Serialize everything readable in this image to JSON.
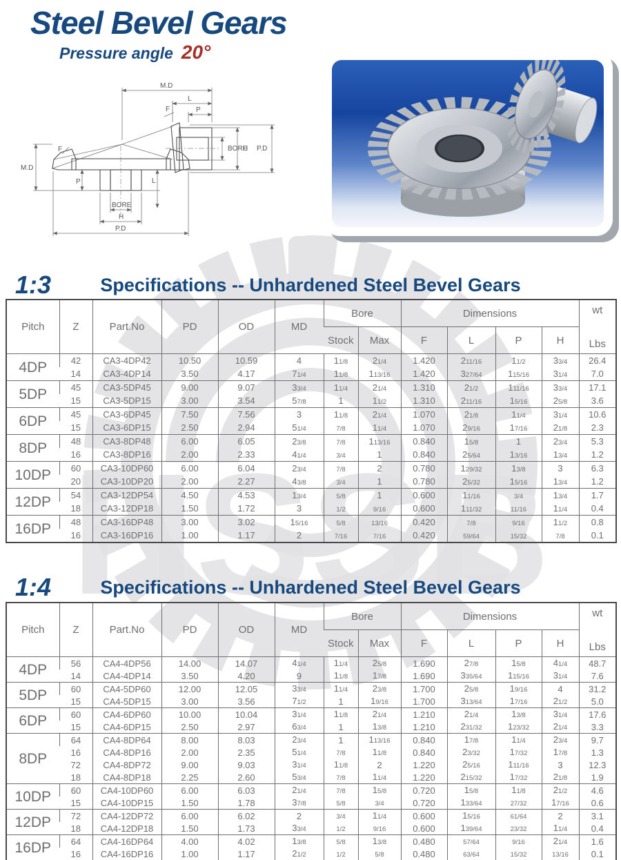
{
  "page": {
    "title": "Steel Bevel Gears",
    "subtitle": "Pressure angle",
    "pressure_angle": "20°"
  },
  "colors": {
    "navy": "#17497f",
    "red": "#a63028",
    "table_text": "#6e6e6e",
    "watermark": "#e4e4e6",
    "photo_blue": "#16459f"
  },
  "watermark_text": "HSSB",
  "drawing": {
    "labels": {
      "md": "M.D",
      "l": "L",
      "f": "F",
      "p": "P",
      "bore": "BORE",
      "h": "H",
      "pd": "P.D"
    }
  },
  "sections": [
    {
      "ratio": "1:3",
      "heading": "Specifications -- Unhardened Steel Bevel Gears",
      "table": {
        "headers": {
          "pitch": "Pitch",
          "z": "Z",
          "part": "Part.No",
          "pd": "PD",
          "od": "OD",
          "md": "MD",
          "bore": "Bore",
          "stock": "Stock",
          "max": "Max",
          "dimensions": "Dimensions",
          "f": "F",
          "l": "L",
          "p": "P",
          "h": "H",
          "wt": "wt",
          "lbs": "Lbs"
        },
        "groups": [
          {
            "pitch": "4DP",
            "rows": [
              [
                "42",
                "CA3-4DP42",
                "10.50",
                "10.59",
                "4",
                "1 1/8",
                "2 1/4",
                "1.420",
                "2 11/16",
                "1 1/2",
                "3 3/4",
                "26.4"
              ],
              [
                "14",
                "CA3-4DP14",
                "3.50",
                "4.17",
                "7 1/4",
                "1 1/8",
                "1 13/16",
                "1.420",
                "3 27/64",
                "1 15/16",
                "3 1/4",
                "7.0"
              ]
            ]
          },
          {
            "pitch": "5DP",
            "rows": [
              [
                "45",
                "CA3-5DP45",
                "9.00",
                "9.07",
                "3 3/4",
                "1 1/4",
                "2 1/4",
                "1.310",
                "2 1/2",
                "1 11/16",
                "3 3/4",
                "17.1"
              ],
              [
                "15",
                "CA3-5DP15",
                "3.00",
                "3.54",
                "5 7/8",
                "1",
                "1 1/2",
                "1.310",
                "2 11/16",
                "1 5/16",
                "2 5/8",
                "3.6"
              ]
            ]
          },
          {
            "pitch": "6DP",
            "rows": [
              [
                "45",
                "CA3-6DP45",
                "7.50",
                "7.56",
                "3",
                "1 1/8",
                "2 1/4",
                "1.070",
                "2 1/8",
                "1 1/4",
                "3 1/4",
                "10.6"
              ],
              [
                "15",
                "CA3-6DP15",
                "2.50",
                "2.94",
                "5 1/4",
                "7/8",
                "1 1/4",
                "1.070",
                "2 9/16",
                "1 7/16",
                "2 1/8",
                "2.3"
              ]
            ]
          },
          {
            "pitch": "8DP",
            "rows": [
              [
                "48",
                "CA3-8DP48",
                "6.00",
                "6.05",
                "2 3/8",
                "7/8",
                "1 13/16",
                "0.840",
                "1 5/8",
                "1",
                "2 3/4",
                "5.3"
              ],
              [
                "16",
                "CA3-8DP16",
                "2.00",
                "2.33",
                "4 1/4",
                "3/4",
                "1",
                "0.840",
                "2 5/64",
                "1 3/16",
                "1 3/4",
                "1.2"
              ]
            ]
          },
          {
            "pitch": "10DP",
            "rows": [
              [
                "60",
                "CA3-10DP60",
                "6.00",
                "6.04",
                "2 3/4",
                "7/8",
                "2",
                "0.780",
                "1 29/32",
                "1 3/8",
                "3",
                "6.3"
              ],
              [
                "20",
                "CA3-10DP20",
                "2.00",
                "2.27",
                "4 3/8",
                "3/4",
                "1",
                "0.780",
                "2 5/32",
                "1 5/16",
                "1 3/4",
                "1.2"
              ]
            ]
          },
          {
            "pitch": "12DP",
            "rows": [
              [
                "54",
                "CA3-12DP54",
                "4.50",
                "4.53",
                "1 3/4",
                "5/8",
                "1",
                "0.600",
                "1 1/16",
                "3/4",
                "1 3/4",
                "1.7"
              ],
              [
                "18",
                "CA3-12DP18",
                "1.50",
                "1.72",
                "3",
                "1/2",
                "9/16",
                "0.600",
                "1 11/32",
                "11/16",
                "1 1/4",
                "0.4"
              ]
            ]
          },
          {
            "pitch": "16DP",
            "rows": [
              [
                "48",
                "CA3-16DP48",
                "3.00",
                "3.02",
                "1 5/16",
                "5/8",
                "13/16",
                "0.420",
                "7/8",
                "9/16",
                "1 1/2",
                "0.8"
              ],
              [
                "16",
                "CA3-16DP16",
                "1.00",
                "1.17",
                "2",
                "7/16",
                "7/16",
                "0.420",
                "59/64",
                "15/32",
                "7/8",
                "0.1"
              ]
            ]
          }
        ]
      }
    },
    {
      "ratio": "1:4",
      "heading": "Specifications -- Unhardened Steel Bevel Gears",
      "table": {
        "headers": {
          "pitch": "Pitch",
          "z": "Z",
          "part": "Part.No",
          "pd": "PD",
          "od": "OD",
          "md": "MD",
          "bore": "Bore",
          "stock": "Stock",
          "max": "Max",
          "dimensions": "Dimensions",
          "f": "F",
          "l": "L",
          "p": "P",
          "h": "H",
          "wt": "wt",
          "lbs": "Lbs"
        },
        "groups": [
          {
            "pitch": "4DP",
            "rows": [
              [
                "56",
                "CA4-4DP56",
                "14.00",
                "14.07",
                "4 1/4",
                "1 1/4",
                "2 5/8",
                "1.690",
                "2 7/8",
                "1 5/8",
                "4 1/4",
                "48.7"
              ],
              [
                "14",
                "CA4-4DP14",
                "3.50",
                "4.20",
                "9",
                "1 1/8",
                "1 7/8",
                "1.690",
                "3 35/64",
                "1 15/16",
                "3 1/4",
                "7.6"
              ]
            ]
          },
          {
            "pitch": "5DP",
            "rows": [
              [
                "60",
                "CA4-5DP60",
                "12.00",
                "12.05",
                "3 3/4",
                "1 1/4",
                "2 3/8",
                "1.700",
                "2 5/8",
                "1 9/16",
                "4",
                "31.2"
              ],
              [
                "15",
                "CA4-5DP15",
                "3.00",
                "3.56",
                "7 1/2",
                "1",
                "1 9/16",
                "1.700",
                "3 13/64",
                "1 7/16",
                "2 1/2",
                "5.0"
              ]
            ]
          },
          {
            "pitch": "6DP",
            "rows": [
              [
                "60",
                "CA4-6DP60",
                "10.00",
                "10.04",
                "3 1/4",
                "1 1/8",
                "2 1/4",
                "1.210",
                "2 1/4",
                "1 3/8",
                "3 1/4",
                "17.6"
              ],
              [
                "15",
                "CA4-6DP15",
                "2.50",
                "2.97",
                "6 3/4",
                "1",
                "1 3/8",
                "1.210",
                "2 31/32",
                "1 23/32",
                "2 1/4",
                "3.3"
              ]
            ]
          },
          {
            "pitch": "8DP",
            "rows": [
              [
                "64",
                "CA4-8DP64",
                "8.00",
                "8.03",
                "2 3/4",
                "1",
                "1 13/16",
                "0.840",
                "1 7/8",
                "1 1/4",
                "2 3/4",
                "9.7"
              ],
              [
                "16",
                "CA4-8DP16",
                "2.00",
                "2.35",
                "5 1/4",
                "7/8",
                "1 1/8",
                "0.840",
                "2 3/32",
                "1 7/32",
                "1 7/8",
                "1.3"
              ],
              [
                "72",
                "CA4-8DP72",
                "9.00",
                "9.03",
                "3 1/4",
                "1 1/8",
                "2",
                "1.220",
                "2 5/16",
                "1 11/16",
                "3",
                "12.3"
              ],
              [
                "18",
                "CA4-8DP18",
                "2.25",
                "2.60",
                "5 3/4",
                "7/8",
                "1 1/4",
                "1.220",
                "2 15/32",
                "1 7/32",
                "2 1/8",
                "1.9"
              ]
            ]
          },
          {
            "pitch": "10DP",
            "rows": [
              [
                "60",
                "CA4-10DP60",
                "6.00",
                "6.03",
                "2 1/4",
                "7/8",
                "1 5/8",
                "0.720",
                "1 5/8",
                "1 1/8",
                "2 1/2",
                "4.6"
              ],
              [
                "15",
                "CA4-10DP15",
                "1.50",
                "1.78",
                "3 7/8",
                "5/8",
                "3/4",
                "0.720",
                "1 33/64",
                "27/32",
                "1 7/16",
                "0.6"
              ]
            ]
          },
          {
            "pitch": "12DP",
            "rows": [
              [
                "72",
                "CA4-12DP72",
                "6.00",
                "6.02",
                "2",
                "3/4",
                "1 1/4",
                "0.600",
                "1 5/16",
                "61/64",
                "2",
                "3.1"
              ],
              [
                "18",
                "CA4-12DP18",
                "1.50",
                "1.73",
                "3 3/4",
                "1/2",
                "9/16",
                "0.600",
                "1 39/64",
                "23/32",
                "1 1/4",
                "0.4"
              ]
            ]
          },
          {
            "pitch": "16DP",
            "rows": [
              [
                "64",
                "CA4-16DP64",
                "4.00",
                "4.02",
                "1 3/8",
                "5/8",
                "1 3/8",
                "0.480",
                "57/64",
                "9/16",
                "2 1/4",
                "1.6"
              ],
              [
                "16",
                "CA4-16DP16",
                "1.00",
                "1.17",
                "2 1/2",
                "1/2",
                "5/8",
                "0.480",
                "63/64",
                "15/32",
                "13/16",
                "0.1"
              ]
            ]
          }
        ]
      }
    }
  ]
}
